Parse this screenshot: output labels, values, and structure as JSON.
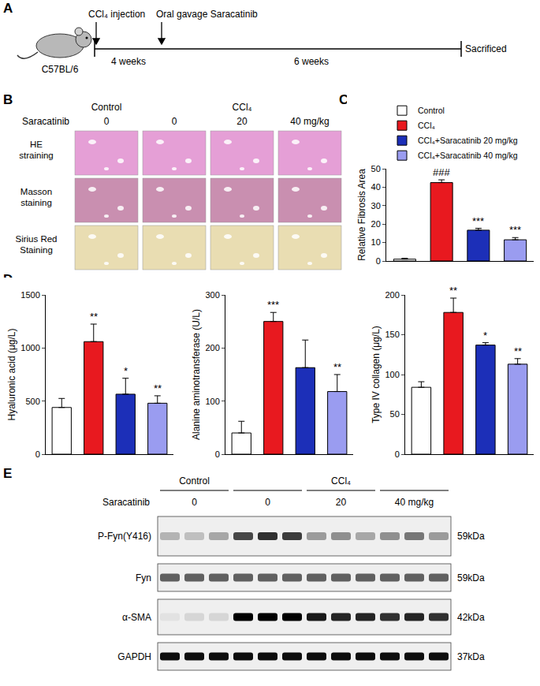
{
  "panel_labels": [
    "A",
    "B",
    "C",
    "D",
    "E"
  ],
  "schematic": {
    "strain": "C57BL/6",
    "events": [
      "CCl₄ injection",
      "Oral gavage Saracatinib"
    ],
    "periods": [
      "4 weeks",
      "6 weeks"
    ],
    "end": "Sacrificed"
  },
  "histology": {
    "treatment": [
      {
        "text": "Control",
        "doses": [
          "0"
        ]
      },
      {
        "text": "CCl₄",
        "doses": [
          "0",
          "20",
          "40 mg/kg"
        ]
      }
    ],
    "dose_label": "Saracatinib",
    "rows": [
      {
        "label": "HE straining",
        "color": "#e59fd6"
      },
      {
        "label": "Masson staining",
        "color": "#c98fb0"
      },
      {
        "label": "Sirius Red Staining",
        "color": "#e9ddb2"
      }
    ]
  },
  "chart_data": [
    {
      "type": "bar",
      "ylabel": "Relative Fibrosis Area",
      "ylim": [
        0,
        50
      ],
      "yticks": [
        0,
        10,
        20,
        30,
        40,
        50
      ],
      "tick_labels": "y",
      "legend": "top",
      "series": [
        {
          "name": "Control",
          "color": "#ffffff",
          "values": [
            1.0
          ],
          "errors": [
            0.5
          ]
        },
        {
          "name": "CCl₄",
          "color": "#e8191f",
          "values": [
            42.5
          ],
          "errors": [
            1.5
          ],
          "annotation": "###"
        },
        {
          "name": "CCl₄+Saracatinib 20 mg/kg",
          "color": "#1c2fb8",
          "values": [
            16.7
          ],
          "errors": [
            1.0
          ],
          "annotation": "***"
        },
        {
          "name": "CCl₄+Saracatinib 40 mg/kg",
          "color": "#9a9cf0",
          "values": [
            11.5
          ],
          "errors": [
            1.2
          ],
          "annotation": "***"
        }
      ]
    },
    {
      "type": "bar",
      "ylabel": "Hyaluronic acid (μg/L)",
      "ylim": [
        0,
        1500
      ],
      "yticks": [
        0,
        500,
        1000,
        1500
      ],
      "tick_labels": "y",
      "categories": [
        null,
        null,
        null,
        null
      ],
      "values": [
        440,
        1060,
        565,
        480
      ],
      "errors": [
        85,
        165,
        150,
        70
      ],
      "colors": [
        "#ffffff",
        "#e8191f",
        "#1c2fb8",
        "#9a9cf0"
      ],
      "annotations": [
        null,
        "**",
        "*",
        "**"
      ]
    },
    {
      "type": "bar",
      "ylabel": "Alanine aminotransferase (U/L)",
      "ylim": [
        0,
        300
      ],
      "yticks": [
        0,
        100,
        200,
        300
      ],
      "tick_labels": "y",
      "categories": [
        null,
        null,
        null,
        null
      ],
      "values": [
        40,
        250,
        163,
        118
      ],
      "errors": [
        22,
        17,
        52,
        32
      ],
      "colors": [
        "#ffffff",
        "#e8191f",
        "#1c2fb8",
        "#9a9cf0"
      ],
      "annotations": [
        null,
        "***",
        null,
        "**"
      ]
    },
    {
      "type": "bar",
      "ylabel": "Type IV collagen (μg/L)",
      "ylim": [
        0,
        200
      ],
      "yticks": [
        0,
        50,
        100,
        150,
        200
      ],
      "tick_labels": "y",
      "categories": [
        null,
        null,
        null,
        null
      ],
      "values": [
        84,
        178,
        137,
        113
      ],
      "errors": [
        7,
        18,
        3,
        7
      ],
      "colors": [
        "#ffffff",
        "#e8191f",
        "#1c2fb8",
        "#9a9cf0"
      ],
      "annotations": [
        null,
        "**",
        "*",
        "**"
      ]
    }
  ],
  "western_blot": {
    "treatment": [
      {
        "text": "Control",
        "doses": [
          "0"
        ]
      },
      {
        "text": "CCl₄",
        "doses": [
          "0",
          "20",
          "40 mg/kg"
        ]
      }
    ],
    "dose_label": "Saracatinib",
    "rows": [
      {
        "label": "P-Fyn(Y416)",
        "size": "59kDa",
        "intensity": [
          0.25,
          0.2,
          0.3,
          0.7,
          0.8,
          0.75,
          0.35,
          0.4,
          0.3,
          0.4,
          0.5,
          0.35
        ]
      },
      {
        "label": "Fyn",
        "size": "59kDa",
        "intensity": [
          0.6,
          0.6,
          0.6,
          0.6,
          0.6,
          0.6,
          0.6,
          0.6,
          0.6,
          0.6,
          0.6,
          0.6
        ]
      },
      {
        "label": "α-SMA",
        "size": "42kDa",
        "intensity": [
          0.05,
          0.1,
          0.1,
          1,
          1,
          1,
          0.9,
          0.85,
          0.85,
          0.8,
          0.85,
          0.8
        ]
      },
      {
        "label": "GAPDH",
        "size": "37kDa",
        "intensity": [
          0.95,
          0.95,
          0.95,
          0.95,
          0.95,
          0.95,
          0.95,
          0.95,
          0.95,
          0.95,
          0.95,
          0.95
        ]
      }
    ]
  }
}
